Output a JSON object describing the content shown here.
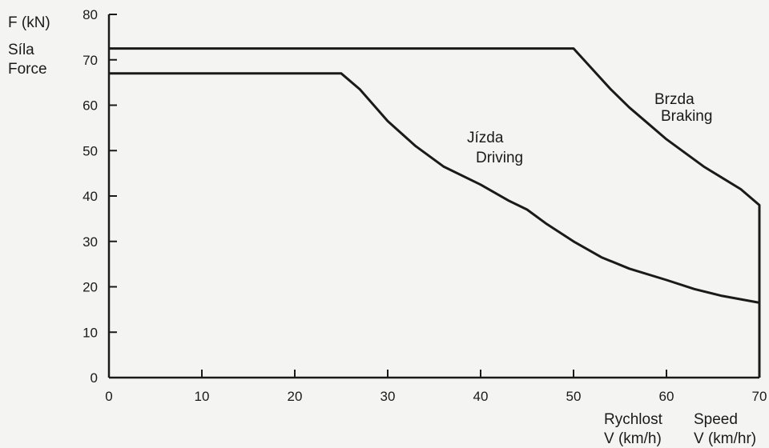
{
  "chart_data": {
    "type": "line",
    "ylabel_lines": [
      "F (kN)",
      "Síla",
      "Force"
    ],
    "xlabel_cz": [
      "Rychlost",
      "V (km/h)"
    ],
    "xlabel_en": [
      "Speed",
      "V (km/hr)"
    ],
    "xlim": [
      0,
      70
    ],
    "ylim": [
      0,
      80
    ],
    "x_ticks": [
      0,
      10,
      20,
      30,
      40,
      50,
      60,
      70
    ],
    "y_ticks": [
      0,
      10,
      20,
      30,
      40,
      50,
      60,
      70,
      80
    ],
    "grid": false,
    "series": [
      {
        "name": "Jízda Driving",
        "label_lines": [
          "Jízda",
          "Driving"
        ],
        "x": [
          0,
          25,
          27,
          30,
          33,
          36,
          40,
          43,
          45,
          47,
          50,
          53,
          56,
          60,
          63,
          66,
          70
        ],
        "y": [
          67,
          67,
          63.5,
          56.5,
          51,
          46.5,
          42.5,
          39,
          37,
          34,
          30,
          26.5,
          24,
          21.5,
          19.5,
          18,
          16.5
        ]
      },
      {
        "name": "Brzda Braking",
        "label_lines": [
          "Brzda",
          "Braking"
        ],
        "x": [
          0,
          50,
          52,
          54,
          56,
          58,
          60,
          62,
          64,
          66,
          68,
          70,
          70
        ],
        "y": [
          72.5,
          72.5,
          68,
          63.5,
          59.5,
          56,
          52.5,
          49.5,
          46.5,
          44,
          41.5,
          38,
          0
        ]
      }
    ]
  }
}
